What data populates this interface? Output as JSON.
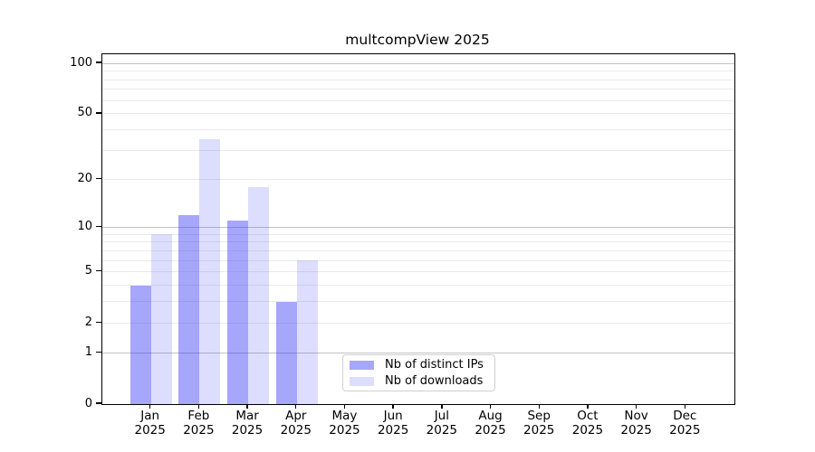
{
  "chart_data": {
    "type": "bar",
    "title": "multcompView 2025",
    "categories": [
      "Jan",
      "Feb",
      "Mar",
      "Apr",
      "May",
      "Jun",
      "Jul",
      "Aug",
      "Sep",
      "Oct",
      "Nov",
      "Dec"
    ],
    "year": "2025",
    "series": [
      {
        "key": "distinct-ips",
        "name": "Nb of distinct IPs",
        "fill": "rgba(43,43,243,0.42)",
        "values": [
          4,
          12,
          11,
          3,
          0,
          0,
          0,
          0,
          0,
          0,
          0,
          0
        ]
      },
      {
        "key": "downloads",
        "name": "Nb of downloads",
        "fill": "rgba(43,43,243,0.16)",
        "values": [
          9,
          35,
          18,
          6,
          0,
          0,
          0,
          0,
          0,
          0,
          0,
          0
        ]
      }
    ],
    "yscale": "log1p",
    "ylim": [
      0,
      100
    ],
    "yticks": [
      0,
      1,
      2,
      5,
      10,
      20,
      50,
      100
    ],
    "grid": {
      "major_values": [
        1,
        10,
        100
      ],
      "minor_values": [
        2,
        3,
        4,
        5,
        6,
        7,
        8,
        9,
        20,
        30,
        40,
        50,
        60,
        70,
        80,
        90
      ],
      "major_color": "#c3c3c3",
      "minor_color": "#eaeaea"
    },
    "legend_position": "lower center",
    "colors": {
      "axis": "#000000",
      "text": "#000000",
      "background": "#ffffff"
    }
  }
}
